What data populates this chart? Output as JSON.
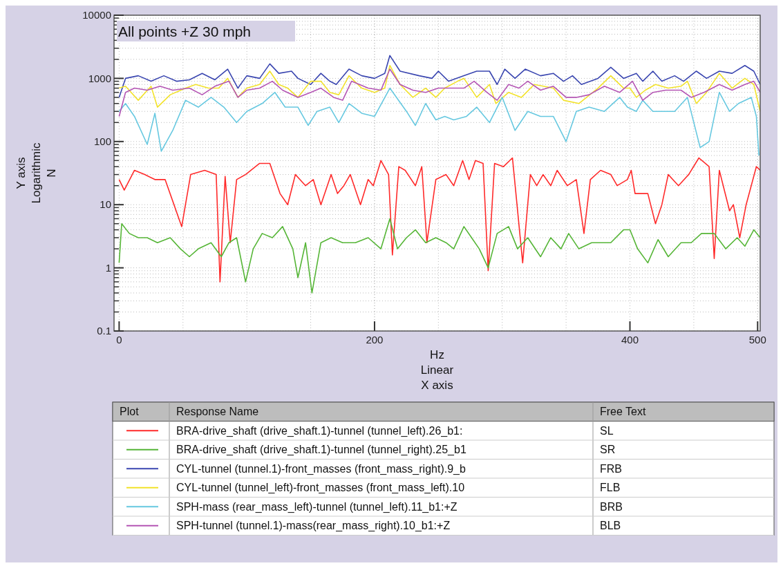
{
  "chart_data": {
    "type": "line",
    "title": "All points +Z 30 mph",
    "xlabel": "Hz\nLinear\nX axis",
    "ylabel": "Y axis\nLogarithmic\nN",
    "log": "y",
    "grid": true,
    "legend": "bottom",
    "xlim": [
      -4,
      502
    ],
    "xticks": [
      0,
      200,
      400,
      500
    ],
    "ylim": [
      0.1,
      10000
    ],
    "yticks": [
      0.1,
      1,
      10,
      100,
      1000,
      10000
    ],
    "annotations": [
      "Plot",
      "Response Name",
      "Free Text",
      "SL",
      "SR",
      "FRB",
      "FLB",
      "BRB",
      "BLB"
    ],
    "series": [
      {
        "name": "BRA-drive_shaft (drive_shaft.1)-tunnel (tunnel_left).26_b1:",
        "color": "#ff2a2a",
        "x": [
          0,
          4,
          12,
          20,
          28,
          36,
          49,
          56,
          67,
          76,
          79,
          83,
          87,
          92,
          99,
          110,
          118,
          126,
          132,
          138,
          146,
          152,
          158,
          166,
          171,
          176,
          181,
          189,
          195,
          199,
          205,
          211,
          214,
          219,
          224,
          232,
          237,
          241,
          248,
          256,
          262,
          269,
          274,
          279,
          285,
          289,
          294,
          301,
          308,
          316,
          322,
          327,
          332,
          338,
          343,
          351,
          358,
          364,
          369,
          377,
          385,
          390,
          398,
          401,
          404,
          414,
          420,
          425,
          430,
          438,
          446,
          454,
          462,
          466,
          470,
          478,
          481,
          486,
          491,
          499,
          502
        ],
        "values": [
          25,
          17,
          35,
          30,
          25,
          25,
          4.5,
          30,
          35,
          30,
          0.6,
          28,
          2.5,
          25,
          30,
          45,
          45,
          15,
          10,
          30,
          20,
          25,
          10,
          30,
          15,
          20,
          30,
          10,
          25,
          20,
          50,
          30,
          1.6,
          40,
          35,
          20,
          40,
          2.5,
          25,
          30,
          20,
          50,
          25,
          50,
          45,
          0.9,
          45,
          40,
          55,
          1.2,
          30,
          20,
          30,
          20,
          35,
          20,
          25,
          3.5,
          25,
          35,
          30,
          20,
          25,
          35,
          15,
          15,
          5,
          10,
          30,
          20,
          30,
          55,
          40,
          1.4,
          35,
          8,
          10,
          3,
          10,
          40,
          35
        ]
      },
      {
        "name": "BRA-drive_shaft (drive_shaft.1)-tunnel (tunnel_right).25_b1",
        "color": "#55b536",
        "x": [
          0,
          2,
          8,
          15,
          22,
          30,
          40,
          48,
          55,
          62,
          72,
          80,
          86,
          92,
          99,
          105,
          112,
          120,
          128,
          136,
          140,
          146,
          151,
          158,
          166,
          175,
          185,
          195,
          205,
          212,
          218,
          225,
          232,
          240,
          248,
          256,
          262,
          270,
          276,
          282,
          289,
          296,
          305,
          312,
          320,
          330,
          338,
          346,
          352,
          360,
          370,
          378,
          385,
          395,
          400,
          406,
          414,
          422,
          430,
          440,
          448,
          456,
          466,
          475,
          484,
          490,
          497,
          502
        ],
        "values": [
          1.2,
          5,
          3.5,
          3,
          3,
          2.5,
          3,
          2,
          1.5,
          2,
          2.5,
          1.5,
          2.5,
          3,
          0.6,
          2,
          3.5,
          3,
          4.5,
          2,
          0.7,
          2.5,
          0.4,
          2.5,
          3,
          2.5,
          2.5,
          3,
          2,
          6,
          2,
          3,
          4,
          2.5,
          3,
          2.5,
          2,
          4.5,
          3,
          2,
          1,
          3.5,
          4.5,
          2,
          3,
          1.5,
          3,
          2,
          3.5,
          2,
          2.5,
          2.5,
          2.5,
          4,
          4,
          2,
          1.2,
          2.8,
          1.5,
          2.5,
          2.5,
          3.5,
          3.5,
          2,
          3,
          2.2,
          4,
          3
        ]
      },
      {
        "name": "CYL-tunnel (tunnel.1)-front_masses (front_mass_right).9_b",
        "color": "#3a46b0",
        "x": [
          0,
          5,
          15,
          25,
          35,
          45,
          55,
          65,
          75,
          85,
          93,
          100,
          110,
          118,
          125,
          135,
          140,
          150,
          158,
          165,
          170,
          180,
          190,
          200,
          208,
          212,
          220,
          235,
          245,
          250,
          258,
          270,
          280,
          290,
          296,
          302,
          310,
          318,
          330,
          340,
          348,
          355,
          362,
          375,
          385,
          395,
          405,
          410,
          418,
          425,
          435,
          442,
          452,
          460,
          470,
          480,
          490,
          497,
          502
        ],
        "values": [
          500,
          1000,
          1100,
          900,
          1100,
          900,
          950,
          1200,
          950,
          1400,
          700,
          1100,
          1000,
          1700,
          1200,
          1300,
          1000,
          800,
          1200,
          900,
          800,
          1400,
          1100,
          1000,
          1200,
          2300,
          1300,
          1100,
          1000,
          1300,
          900,
          1100,
          1300,
          1300,
          800,
          1400,
          1000,
          1400,
          1100,
          1200,
          900,
          1100,
          800,
          1000,
          1500,
          1000,
          1200,
          900,
          1300,
          900,
          1100,
          900,
          1300,
          1000,
          1300,
          1200,
          1600,
          1300,
          800
        ]
      },
      {
        "name": "CYL-tunnel (tunnel_left)-front_masses (front_mass_left).10",
        "color": "#f2e22a",
        "x": [
          0,
          5,
          15,
          25,
          30,
          40,
          52,
          60,
          70,
          78,
          85,
          93,
          100,
          110,
          118,
          125,
          132,
          140,
          150,
          158,
          165,
          172,
          180,
          190,
          200,
          208,
          212,
          220,
          230,
          240,
          248,
          255,
          265,
          270,
          280,
          290,
          295,
          305,
          315,
          325,
          340,
          348,
          360,
          375,
          385,
          395,
          400,
          405,
          412,
          420,
          430,
          440,
          445,
          452,
          460,
          470,
          480,
          490,
          497,
          502
        ],
        "values": [
          700,
          750,
          450,
          750,
          350,
          550,
          700,
          800,
          700,
          700,
          1000,
          500,
          700,
          800,
          1300,
          800,
          700,
          500,
          900,
          900,
          600,
          550,
          1100,
          700,
          600,
          700,
          1600,
          800,
          500,
          700,
          500,
          700,
          900,
          1000,
          500,
          800,
          400,
          600,
          500,
          800,
          700,
          450,
          400,
          700,
          1100,
          700,
          700,
          500,
          650,
          800,
          700,
          750,
          900,
          400,
          600,
          1200,
          700,
          1000,
          800,
          300
        ]
      },
      {
        "name": "SPH-mass (rear_mass_left)-tunnel (tunnel_left).11_b1:+Z",
        "color": "#66c8e0",
        "x": [
          0,
          5,
          12,
          22,
          28,
          33,
          42,
          52,
          62,
          72,
          82,
          92,
          100,
          112,
          122,
          130,
          140,
          148,
          155,
          165,
          172,
          180,
          190,
          200,
          212,
          225,
          232,
          240,
          248,
          255,
          262,
          272,
          280,
          290,
          300,
          310,
          320,
          330,
          340,
          350,
          358,
          368,
          380,
          392,
          398,
          405,
          410,
          418,
          425,
          435,
          445,
          455,
          462,
          470,
          478,
          485,
          495,
          499,
          501
        ],
        "values": [
          300,
          400,
          250,
          90,
          280,
          70,
          150,
          450,
          350,
          500,
          350,
          200,
          300,
          400,
          600,
          350,
          350,
          180,
          300,
          350,
          200,
          400,
          280,
          250,
          700,
          300,
          180,
          400,
          220,
          250,
          220,
          250,
          350,
          200,
          500,
          150,
          300,
          250,
          250,
          100,
          300,
          350,
          300,
          500,
          350,
          300,
          450,
          300,
          300,
          300,
          500,
          80,
          100,
          600,
          300,
          400,
          500,
          250,
          60
        ]
      },
      {
        "name": "SPH-tunnel (tunnel.1)-mass(rear_mass_right).10_b1:+Z",
        "color": "#b455b4",
        "x": [
          0,
          5,
          12,
          22,
          32,
          42,
          55,
          65,
          75,
          86,
          93,
          100,
          110,
          120,
          128,
          140,
          150,
          158,
          168,
          175,
          182,
          195,
          205,
          212,
          220,
          230,
          240,
          250,
          258,
          270,
          278,
          288,
          296,
          305,
          313,
          320,
          330,
          340,
          350,
          358,
          368,
          380,
          392,
          402,
          410,
          418,
          428,
          440,
          448,
          458,
          470,
          480,
          490,
          497,
          502
        ],
        "values": [
          250,
          600,
          700,
          650,
          750,
          650,
          700,
          550,
          750,
          900,
          500,
          650,
          700,
          900,
          650,
          500,
          600,
          700,
          500,
          450,
          900,
          700,
          650,
          1400,
          800,
          650,
          600,
          700,
          700,
          700,
          900,
          600,
          450,
          800,
          700,
          900,
          650,
          750,
          500,
          500,
          550,
          750,
          600,
          900,
          450,
          600,
          650,
          650,
          500,
          600,
          800,
          650,
          800,
          900,
          600
        ]
      }
    ]
  }
}
